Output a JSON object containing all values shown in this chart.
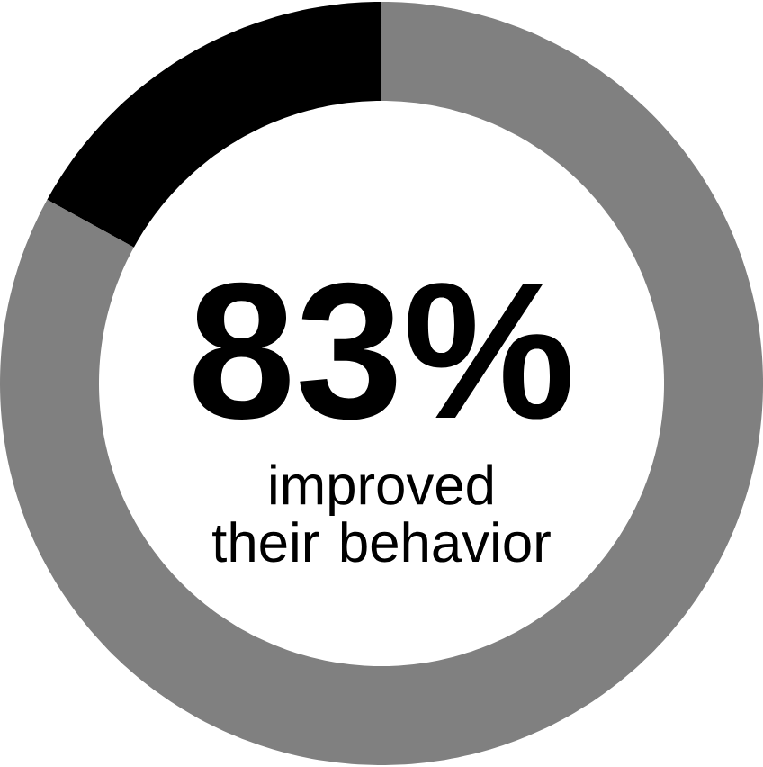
{
  "chart_data": {
    "type": "donut",
    "categories": [
      null,
      null
    ],
    "values": [
      83,
      17
    ],
    "colors": [
      "#808080",
      "#000000"
    ],
    "value_labels": [
      "83%",
      null
    ],
    "annotations": [
      "improved their behavior"
    ]
  }
}
